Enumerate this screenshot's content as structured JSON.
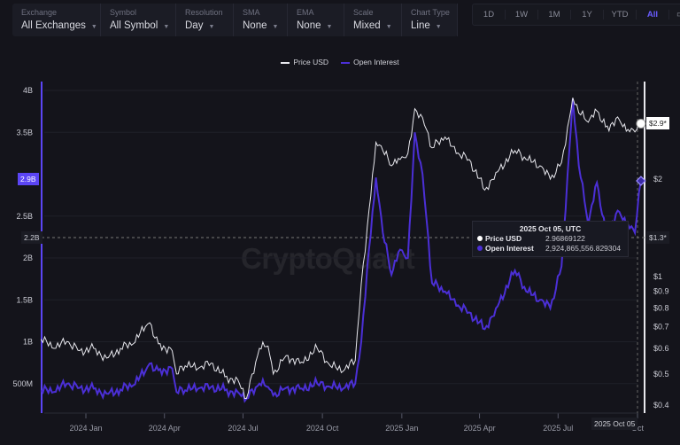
{
  "filters": [
    {
      "label": "Exchange",
      "value": "All Exchanges",
      "w": 100
    },
    {
      "label": "Symbol",
      "value": "All Symbol",
      "w": 85
    },
    {
      "label": "Resolution",
      "value": "Day",
      "w": 65
    },
    {
      "label": "SMA",
      "value": "None",
      "w": 61
    },
    {
      "label": "EMA",
      "value": "None",
      "w": 64
    },
    {
      "label": "Scale",
      "value": "Mixed",
      "w": 65
    },
    {
      "label": "Chart Type",
      "value": "Line",
      "w": 63
    }
  ],
  "periods": [
    "1D",
    "1W",
    "1M",
    "1Y",
    "YTD",
    "All"
  ],
  "active_period": "All",
  "watermark": "CryptoQuant",
  "tooltip": {
    "title": "2025 Oct 05, UTC",
    "price_label": "Price USD",
    "price_value": "2.96869122",
    "oi_label": "Open Interest",
    "oi_value": "2,924,865,556.829304"
  },
  "crosshair": {
    "left_value": "2.2B",
    "right_value": "$1.3*",
    "date": "2025 Oct 05"
  },
  "last_values": {
    "oi": "2.9B",
    "price": "$2.9*"
  },
  "colors": {
    "price": "#e8e8ee",
    "oi": "#4b2fd6",
    "accent": "#5b45f5",
    "background": "#14141b"
  },
  "chart_data": {
    "type": "line",
    "legend": "top-center",
    "grid": true,
    "series": [
      {
        "name": "Price USD",
        "axis": "right",
        "scale": "log",
        "points": [
          [
            "2023-11-10",
            0.64
          ],
          [
            "2023-11-25",
            0.6
          ],
          [
            "2023-12-10",
            0.63
          ],
          [
            "2023-12-25",
            0.59
          ],
          [
            "2024-01-10",
            0.6
          ],
          [
            "2024-01-25",
            0.56
          ],
          [
            "2024-02-10",
            0.6
          ],
          [
            "2024-02-25",
            0.62
          ],
          [
            "2024-03-10",
            0.7
          ],
          [
            "2024-03-15",
            0.72
          ],
          [
            "2024-03-25",
            0.62
          ],
          [
            "2024-04-10",
            0.59
          ],
          [
            "2024-04-15",
            0.5
          ],
          [
            "2024-04-25",
            0.53
          ],
          [
            "2024-05-10",
            0.52
          ],
          [
            "2024-05-25",
            0.54
          ],
          [
            "2024-06-10",
            0.49
          ],
          [
            "2024-06-25",
            0.48
          ],
          [
            "2024-07-05",
            0.42
          ],
          [
            "2024-07-20",
            0.6
          ],
          [
            "2024-07-30",
            0.61
          ],
          [
            "2024-08-05",
            0.5
          ],
          [
            "2024-08-20",
            0.57
          ],
          [
            "2024-09-05",
            0.54
          ],
          [
            "2024-09-25",
            0.6
          ],
          [
            "2024-10-10",
            0.53
          ],
          [
            "2024-10-25",
            0.51
          ],
          [
            "2024-11-08",
            0.55
          ],
          [
            "2024-11-15",
            0.95
          ],
          [
            "2024-11-22",
            1.43
          ],
          [
            "2024-12-02",
            2.6
          ],
          [
            "2024-12-10",
            2.45
          ],
          [
            "2024-12-20",
            2.2
          ],
          [
            "2024-12-30",
            2.3
          ],
          [
            "2025-01-08",
            2.4
          ],
          [
            "2025-01-16",
            3.3
          ],
          [
            "2025-01-25",
            3.1
          ],
          [
            "2025-02-05",
            2.5
          ],
          [
            "2025-02-20",
            2.7
          ],
          [
            "2025-03-05",
            2.4
          ],
          [
            "2025-03-20",
            2.3
          ],
          [
            "2025-04-07",
            1.85
          ],
          [
            "2025-04-20",
            2.1
          ],
          [
            "2025-05-12",
            2.45
          ],
          [
            "2025-05-25",
            2.3
          ],
          [
            "2025-06-10",
            2.2
          ],
          [
            "2025-06-22",
            2.0
          ],
          [
            "2025-07-05",
            2.25
          ],
          [
            "2025-07-12",
            2.9
          ],
          [
            "2025-07-18",
            3.57
          ],
          [
            "2025-07-25",
            3.2
          ],
          [
            "2025-08-05",
            3.0
          ],
          [
            "2025-08-15",
            3.25
          ],
          [
            "2025-08-25",
            2.9
          ],
          [
            "2025-09-10",
            3.05
          ],
          [
            "2025-09-20",
            2.85
          ],
          [
            "2025-09-28",
            2.8
          ],
          [
            "2025-10-05",
            2.97
          ]
        ]
      },
      {
        "name": "Open Interest",
        "axis": "left",
        "scale": "linear",
        "points": [
          [
            "2023-11-10",
            0.42
          ],
          [
            "2023-11-25",
            0.4
          ],
          [
            "2023-12-10",
            0.5
          ],
          [
            "2023-12-25",
            0.45
          ],
          [
            "2024-01-10",
            0.44
          ],
          [
            "2024-01-25",
            0.38
          ],
          [
            "2024-02-10",
            0.43
          ],
          [
            "2024-02-25",
            0.48
          ],
          [
            "2024-03-10",
            0.65
          ],
          [
            "2024-03-15",
            0.74
          ],
          [
            "2024-03-25",
            0.66
          ],
          [
            "2024-04-10",
            0.68
          ],
          [
            "2024-04-15",
            0.4
          ],
          [
            "2024-04-25",
            0.42
          ],
          [
            "2024-05-10",
            0.44
          ],
          [
            "2024-05-25",
            0.46
          ],
          [
            "2024-06-10",
            0.42
          ],
          [
            "2024-06-25",
            0.4
          ],
          [
            "2024-07-05",
            0.32
          ],
          [
            "2024-07-20",
            0.5
          ],
          [
            "2024-07-30",
            0.46
          ],
          [
            "2024-08-05",
            0.36
          ],
          [
            "2024-08-20",
            0.45
          ],
          [
            "2024-09-05",
            0.44
          ],
          [
            "2024-09-25",
            0.5
          ],
          [
            "2024-10-10",
            0.46
          ],
          [
            "2024-10-25",
            0.44
          ],
          [
            "2024-11-08",
            0.5
          ],
          [
            "2024-11-15",
            1.0
          ],
          [
            "2024-11-22",
            1.9
          ],
          [
            "2024-12-02",
            2.96
          ],
          [
            "2024-12-10",
            2.3
          ],
          [
            "2024-12-20",
            1.8
          ],
          [
            "2024-12-30",
            2.1
          ],
          [
            "2025-01-08",
            2.0
          ],
          [
            "2025-01-16",
            3.5
          ],
          [
            "2025-01-25",
            3.0
          ],
          [
            "2025-02-05",
            1.7
          ],
          [
            "2025-02-20",
            1.6
          ],
          [
            "2025-03-05",
            1.43
          ],
          [
            "2025-03-20",
            1.35
          ],
          [
            "2025-04-07",
            1.15
          ],
          [
            "2025-04-20",
            1.4
          ],
          [
            "2025-05-12",
            1.85
          ],
          [
            "2025-05-25",
            1.6
          ],
          [
            "2025-06-10",
            1.5
          ],
          [
            "2025-06-22",
            1.4
          ],
          [
            "2025-07-05",
            1.9
          ],
          [
            "2025-07-12",
            3.0
          ],
          [
            "2025-07-18",
            3.9
          ],
          [
            "2025-07-25",
            3.1
          ],
          [
            "2025-08-05",
            2.4
          ],
          [
            "2025-08-15",
            2.9
          ],
          [
            "2025-08-25",
            2.3
          ],
          [
            "2025-09-10",
            2.55
          ],
          [
            "2025-09-20",
            2.4
          ],
          [
            "2025-09-28",
            2.3
          ],
          [
            "2025-10-05",
            2.92
          ]
        ]
      }
    ],
    "left_axis": {
      "ticks": [
        "500M",
        "1B",
        "1.5B",
        "2B",
        "2.5B",
        "3.5B",
        "4B"
      ],
      "tick_values": [
        0.5,
        1,
        1.5,
        2,
        2.5,
        3.5,
        4
      ],
      "range": [
        0,
        4.1
      ]
    },
    "right_axis": {
      "ticks": [
        "$0.4",
        "$0.5",
        "$0.6",
        "$0.7",
        "$0.8",
        "$0.9",
        "$1",
        "$2"
      ],
      "tick_values": [
        0.4,
        0.5,
        0.6,
        0.7,
        0.8,
        0.9,
        1,
        2
      ]
    },
    "x_axis": {
      "ticks": [
        "2024 Jan",
        "2024 Apr",
        "2024 Jul",
        "2024 Oct",
        "2025 Jan",
        "2025 Apr",
        "2025 Jul",
        "Oct"
      ],
      "tick_dates": [
        "2024-01-01",
        "2024-04-01",
        "2024-07-01",
        "2024-10-01",
        "2025-01-01",
        "2025-04-01",
        "2025-07-01",
        "2025-10-01"
      ]
    }
  }
}
